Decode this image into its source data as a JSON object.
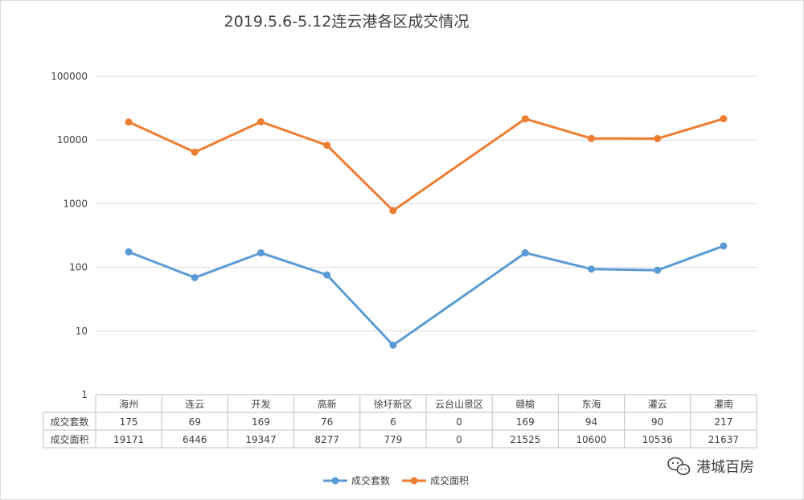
{
  "watermark": {
    "text": "港城百房",
    "icon": "wechat-icon"
  },
  "chart_data": {
    "type": "line",
    "title": "2019.5.6-5.12连云港各区成交情况",
    "xlabel": "",
    "ylabel": "",
    "yscale": "log",
    "ylim": [
      1,
      100000
    ],
    "y_ticks": [
      "1",
      "10",
      "100",
      "1000",
      "10000",
      "100000"
    ],
    "grid": true,
    "legend_position": "bottom",
    "categories": [
      "海州",
      "连云",
      "开发",
      "高新",
      "徐圩新区",
      "云台山景区",
      "赣榆",
      "东海",
      "灌云",
      "灌南"
    ],
    "series": [
      {
        "name": "成交套数",
        "color": "#5b9bd5",
        "values": [
          175,
          69,
          169,
          76,
          6,
          0,
          169,
          94,
          90,
          217
        ],
        "table_values": [
          "175",
          "69",
          "169",
          "76",
          "6",
          "0",
          "169",
          "94",
          "90",
          "217"
        ]
      },
      {
        "name": "成交面积",
        "color": "#ed7d31",
        "values": [
          19171,
          6446,
          19347,
          8277,
          779,
          0,
          21525,
          10600,
          10536,
          21637
        ],
        "table_values": [
          "19171",
          "6446",
          "19347",
          "8277",
          "779",
          "0",
          "21525",
          "10600",
          "10536",
          "21637"
        ]
      }
    ]
  }
}
